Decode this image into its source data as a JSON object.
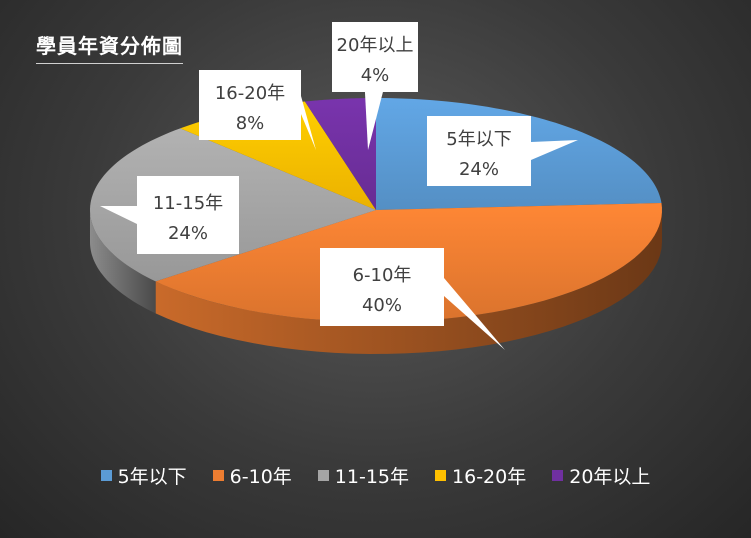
{
  "chart_data": {
    "type": "pie",
    "title": "學員年資分佈圖",
    "categories": [
      "5年以下",
      "6-10年",
      "11-15年",
      "16-20年",
      "20年以上"
    ],
    "values": [
      24,
      40,
      24,
      8,
      4
    ],
    "labels": [
      "24%",
      "40%",
      "24%",
      "8%",
      "4%"
    ],
    "colors": [
      "#5b9bd5",
      "#ed7d31",
      "#a5a5a5",
      "#ffc000",
      "#7030a0"
    ],
    "legend_position": "bottom",
    "style": "3d"
  }
}
